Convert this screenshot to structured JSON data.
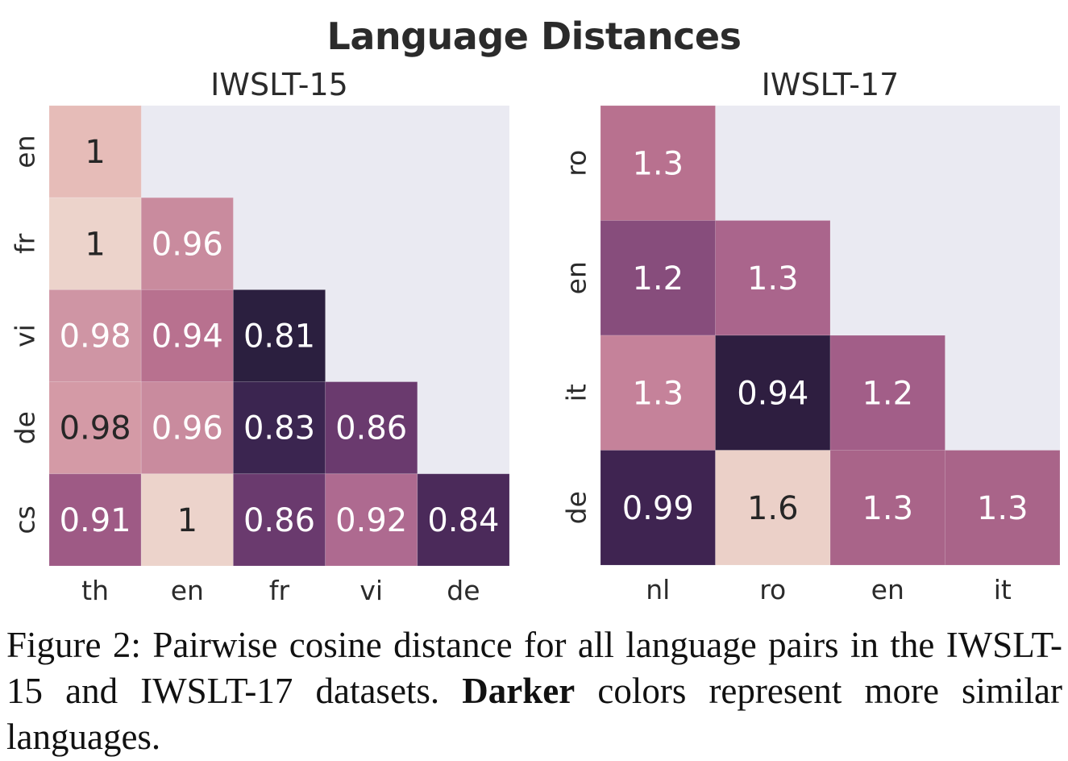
{
  "figure": {
    "title": "Language Distances",
    "caption": {
      "prefix": "Figure 2: Pairwise cosine distance for all language pairs in the IWSLT-15 and IWSLT-17 datasets.",
      "bold": "Darker",
      "suffix": "colors represent more similar languages."
    }
  },
  "chart_data": [
    {
      "type": "heatmap",
      "title": "IWSLT-15",
      "rows": [
        "en",
        "fr",
        "vi",
        "de",
        "cs"
      ],
      "cols": [
        "th",
        "en",
        "fr",
        "vi",
        "de"
      ],
      "values": [
        [
          1,
          null,
          null,
          null,
          null
        ],
        [
          1,
          0.96,
          null,
          null,
          null
        ],
        [
          0.98,
          0.94,
          0.81,
          null,
          null
        ],
        [
          0.98,
          0.96,
          0.83,
          0.86,
          null
        ],
        [
          0.91,
          1,
          0.86,
          0.92,
          0.84
        ]
      ],
      "colors": [
        [
          "#e6bcb8",
          null,
          null,
          null,
          null
        ],
        [
          "#ecd3cb",
          "#c98b9e",
          null,
          null,
          null
        ],
        [
          "#cf95a4",
          "#b8718f",
          "#2b1f3f",
          null,
          null
        ],
        [
          "#d49aa6",
          "#c98b9e",
          "#3b2550",
          "#6a3a6e",
          null
        ],
        [
          "#9e5a85",
          "#ecd3cb",
          "#6a3a6e",
          "#ae6a90",
          "#4b2a5a"
        ]
      ],
      "text_colors": [
        [
          "#262626",
          null,
          null,
          null,
          null
        ],
        [
          "#262626",
          "#ffffff",
          null,
          null,
          null
        ],
        [
          "#ffffff",
          "#ffffff",
          "#ffffff",
          null,
          null
        ],
        [
          "#262626",
          "#ffffff",
          "#ffffff",
          "#ffffff",
          null
        ],
        [
          "#ffffff",
          "#262626",
          "#ffffff",
          "#ffffff",
          "#ffffff"
        ]
      ],
      "empty_color": "#eaeaf2"
    },
    {
      "type": "heatmap",
      "title": "IWSLT-17",
      "rows": [
        "ro",
        "en",
        "it",
        "de"
      ],
      "cols": [
        "nl",
        "ro",
        "en",
        "it"
      ],
      "values": [
        [
          1.3,
          null,
          null,
          null
        ],
        [
          1.2,
          1.3,
          null,
          null
        ],
        [
          1.3,
          0.94,
          1.2,
          null
        ],
        [
          0.99,
          1.6,
          1.3,
          1.3
        ]
      ],
      "colors": [
        [
          "#b8718f",
          null,
          null,
          null
        ],
        [
          "#874d7c",
          "#aa658c",
          null,
          null
        ],
        [
          "#c5829a",
          "#2e1e40",
          "#a25e88",
          null
        ],
        [
          "#3f2451",
          "#ebd0c8",
          "#a96489",
          "#a96489"
        ]
      ],
      "text_colors": [
        [
          "#ffffff",
          null,
          null,
          null
        ],
        [
          "#ffffff",
          "#ffffff",
          null,
          null
        ],
        [
          "#ffffff",
          "#ffffff",
          "#ffffff",
          null
        ],
        [
          "#ffffff",
          "#262626",
          "#ffffff",
          "#ffffff"
        ]
      ],
      "empty_color": "#eaeaf2"
    }
  ]
}
